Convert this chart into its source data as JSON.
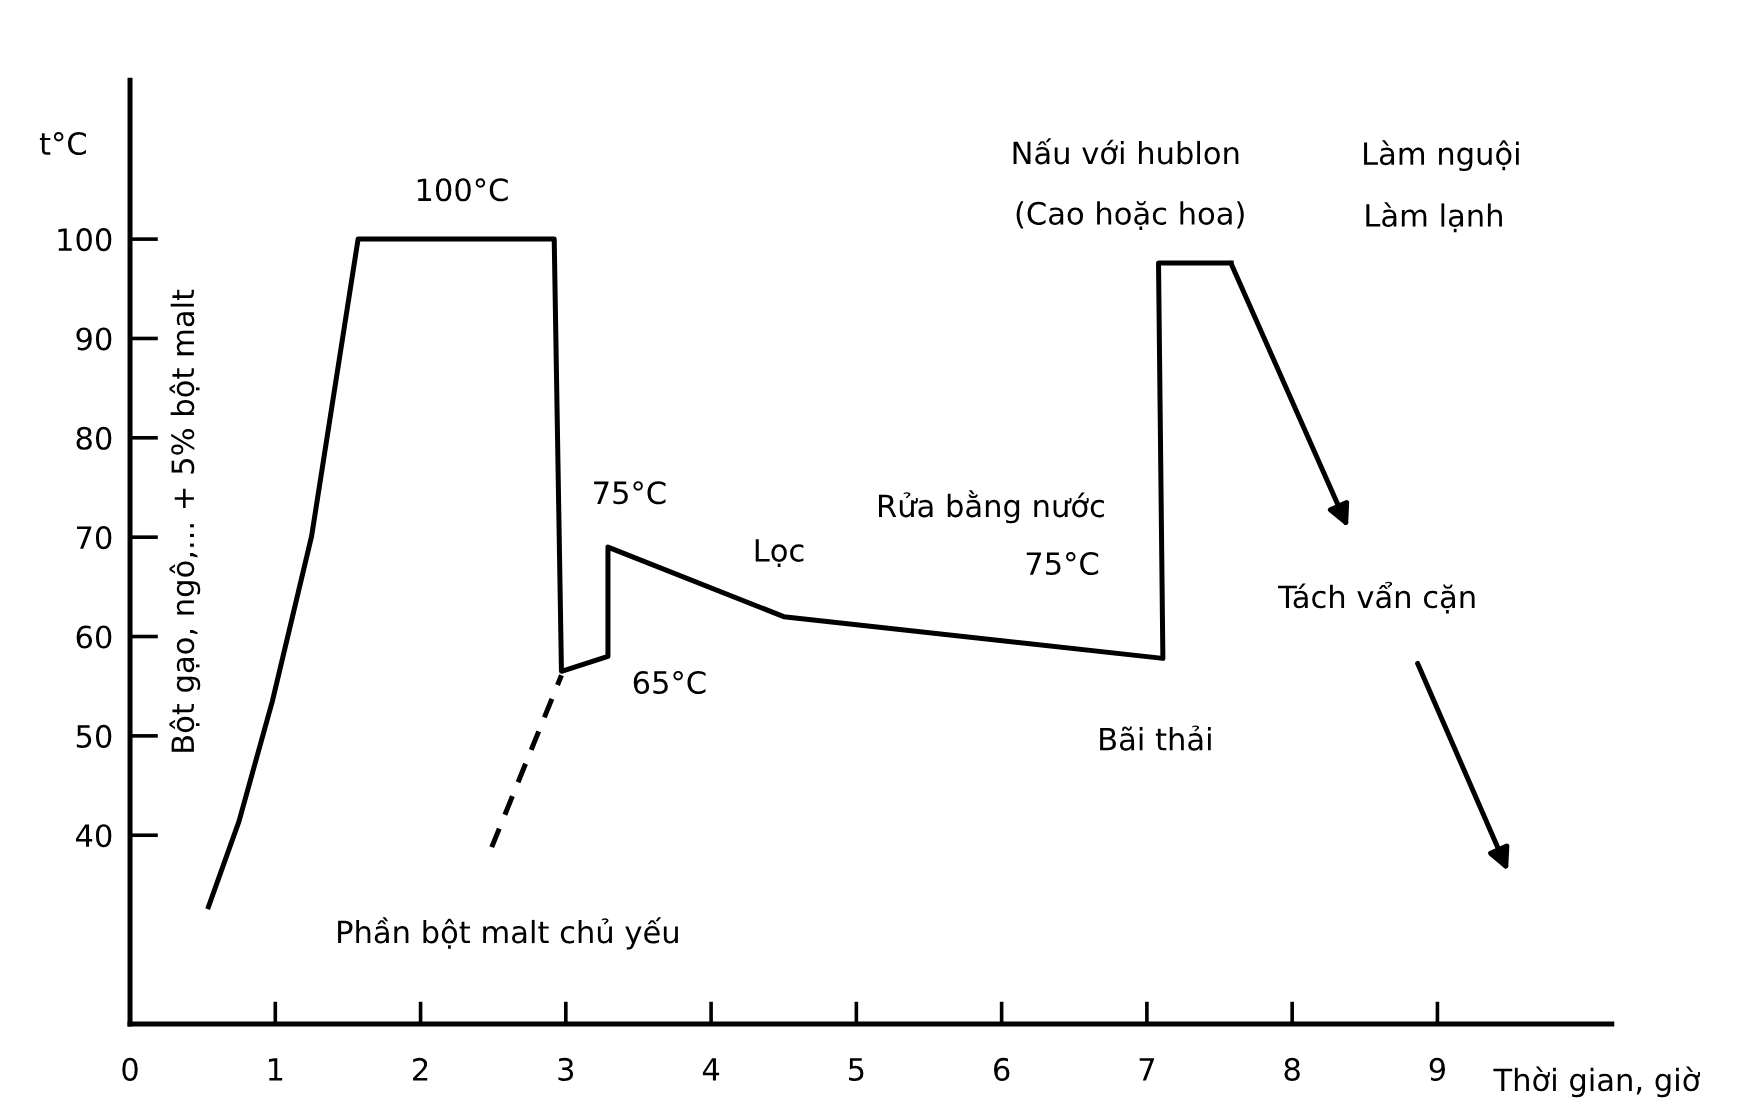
{
  "chart_data": {
    "type": "line",
    "xlabel": "Thời gian, giờ",
    "ylabel": "t°C",
    "xlim": [
      0,
      10.2
    ],
    "ylim": [
      21,
      116
    ],
    "xticks": [
      0,
      1,
      2,
      3,
      4,
      5,
      6,
      7,
      8,
      9
    ],
    "yticks": [
      40,
      50,
      60,
      70,
      80,
      90,
      100
    ],
    "grid": false,
    "marker": "none",
    "series": [
      {
        "color": "#000000",
        "line_style": "solid",
        "x": [
          0.54,
          0.75,
          0.98,
          1.25,
          1.57,
          2.92,
          2.97,
          3.29,
          3.29,
          4.5,
          7.11,
          7.08,
          7.58
        ],
        "values": [
          32.8,
          41.4,
          53.5,
          70.1,
          100,
          100,
          56.5,
          58,
          69,
          62,
          57.8,
          97.6,
          97.6
        ]
      },
      {
        "color": "#000000",
        "line_style": "dashed",
        "x": [
          2.49,
          2.97
        ],
        "values": [
          38.8,
          56.1
        ]
      }
    ],
    "annotations": [
      "100°C",
      "Bột gạo, ngô,... + 5% bột malt",
      "75°C",
      "65°C",
      "Lọc",
      "Rửa bằng nước",
      "75°C",
      "Bãi thải",
      "Nấu với hublon",
      "(Cao hoặc hoa)",
      "Làm nguội",
      "Làm lạnh",
      "Tách vẩn cặn",
      "Phần bột malt chủ yếu"
    ]
  }
}
